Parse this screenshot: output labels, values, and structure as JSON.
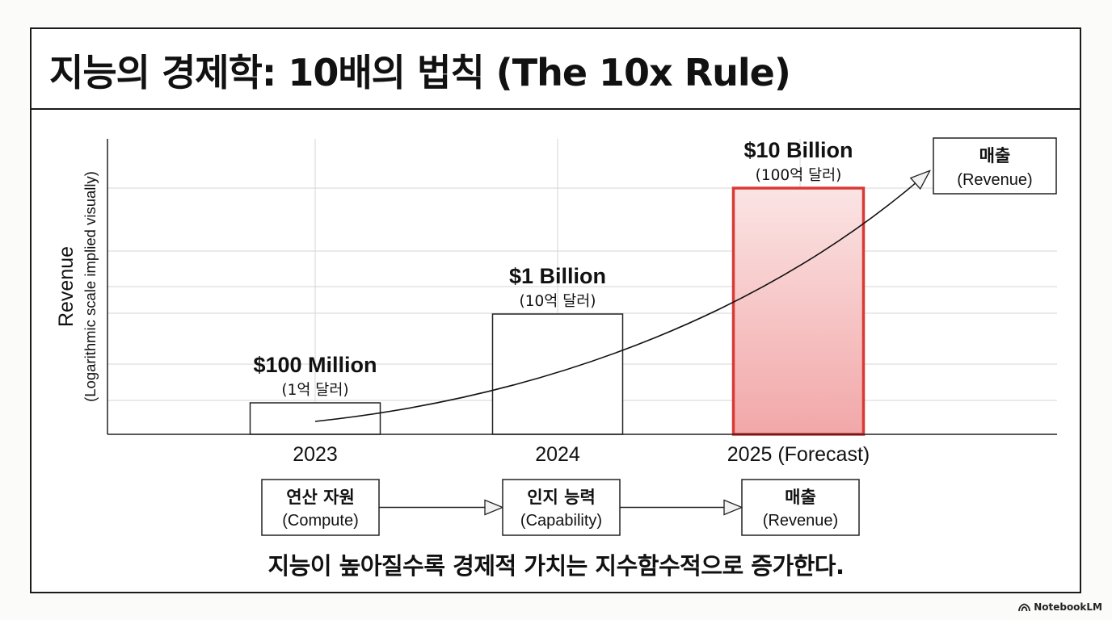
{
  "title": "지능의 경제학: 10배의 법칙 (The 10x Rule)",
  "chart_data": {
    "type": "bar",
    "categories": [
      "2023",
      "2024",
      "2025 (Forecast)"
    ],
    "values": [
      100000000,
      1000000000,
      10000000000
    ],
    "value_labels": [
      "$100 Million",
      "$1 Billion",
      "$10 Billion"
    ],
    "value_sublabels": [
      "(1억 달러)",
      "(10억 달러)",
      "(100억 달러)"
    ],
    "ylabel": "Revenue",
    "ylabel_note": "(Logarithmic scale implied visually)",
    "scale": "log",
    "grid": true,
    "highlight_index": 2,
    "highlight_color": "#d93a35",
    "trend_target_label": "매출",
    "trend_target_sublabel": "(Revenue)"
  },
  "flow": [
    {
      "label": "연산 자원",
      "sublabel": "(Compute)"
    },
    {
      "label": "인지 능력",
      "sublabel": "(Capability)"
    },
    {
      "label": "매출",
      "sublabel": "(Revenue)"
    }
  ],
  "caption": "지능이 높아질수록 경제적 가치는 지수함수적으로 증가한다.",
  "brand": "NotebookLM"
}
